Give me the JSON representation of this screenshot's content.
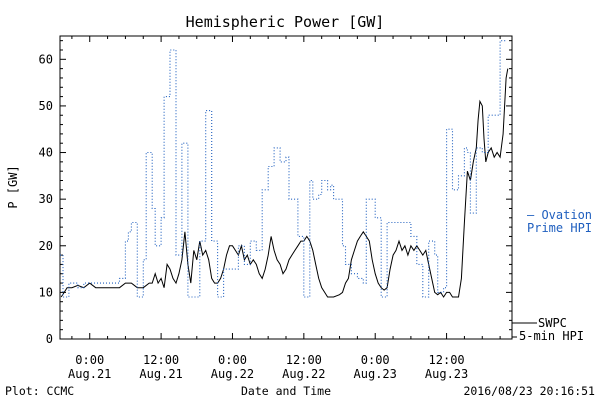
{
  "chart_data": {
    "type": "line",
    "title": "Hemispheric Power [GW]",
    "ylabel": "P [GW]",
    "xlabel": "Date and Time",
    "ylim": [
      0,
      65
    ],
    "yticks": [
      0,
      10,
      20,
      30,
      40,
      50,
      60
    ],
    "xlim": [
      -5,
      71
    ],
    "xticks": [
      {
        "x": 0,
        "time": "0:00",
        "date": "Aug.21"
      },
      {
        "x": 12,
        "time": "12:00",
        "date": "Aug.21"
      },
      {
        "x": 24,
        "time": "0:00",
        "date": "Aug.22"
      },
      {
        "x": 36,
        "time": "12:00",
        "date": "Aug.22"
      },
      {
        "x": 48,
        "time": "0:00",
        "date": "Aug.23"
      },
      {
        "x": 60,
        "time": "12:00",
        "date": "Aug.23"
      }
    ],
    "grid": false,
    "series": [
      {
        "name": "SWPC 5-min HPI",
        "color": "#000000",
        "style": "solid",
        "points": [
          [
            -4.8,
            9
          ],
          [
            -4.3,
            10
          ],
          [
            -3.8,
            11
          ],
          [
            -3,
            11
          ],
          [
            -2,
            11.5
          ],
          [
            -1,
            11
          ],
          [
            0,
            12
          ],
          [
            1,
            11
          ],
          [
            2,
            11
          ],
          [
            3,
            11
          ],
          [
            4,
            11
          ],
          [
            5,
            11
          ],
          [
            6,
            12
          ],
          [
            7,
            12
          ],
          [
            8,
            11
          ],
          [
            9,
            11
          ],
          [
            10,
            12
          ],
          [
            10.5,
            12
          ],
          [
            11,
            14
          ],
          [
            11.5,
            12
          ],
          [
            12,
            13
          ],
          [
            12.5,
            11
          ],
          [
            13,
            16
          ],
          [
            13.5,
            15
          ],
          [
            14,
            13
          ],
          [
            14.5,
            12
          ],
          [
            15,
            14
          ],
          [
            15.5,
            17
          ],
          [
            16,
            23
          ],
          [
            16.5,
            16
          ],
          [
            17,
            12
          ],
          [
            17.5,
            19
          ],
          [
            18,
            17
          ],
          [
            18.5,
            21
          ],
          [
            19,
            18
          ],
          [
            19.5,
            19
          ],
          [
            20,
            17
          ],
          [
            20.5,
            13
          ],
          [
            21,
            12
          ],
          [
            21.5,
            12
          ],
          [
            22,
            13
          ],
          [
            22.5,
            15
          ],
          [
            23,
            18
          ],
          [
            23.5,
            20
          ],
          [
            24,
            20
          ],
          [
            24.5,
            19
          ],
          [
            25,
            18
          ],
          [
            25.5,
            20
          ],
          [
            26,
            17
          ],
          [
            26.5,
            18
          ],
          [
            27,
            16
          ],
          [
            27.5,
            17
          ],
          [
            28,
            16
          ],
          [
            28.5,
            14
          ],
          [
            29,
            13
          ],
          [
            29.5,
            15
          ],
          [
            30,
            18
          ],
          [
            30.5,
            22
          ],
          [
            31,
            19
          ],
          [
            31.5,
            17
          ],
          [
            32,
            16
          ],
          [
            32.5,
            14
          ],
          [
            33,
            15
          ],
          [
            33.5,
            17
          ],
          [
            34,
            18
          ],
          [
            34.5,
            19
          ],
          [
            35,
            20
          ],
          [
            35.5,
            21
          ],
          [
            36,
            21
          ],
          [
            36.5,
            22
          ],
          [
            37,
            21
          ],
          [
            37.5,
            19
          ],
          [
            38,
            16
          ],
          [
            38.5,
            13
          ],
          [
            39,
            11
          ],
          [
            39.5,
            10
          ],
          [
            40,
            9
          ],
          [
            41,
            9
          ],
          [
            42,
            9.5
          ],
          [
            42.5,
            10
          ],
          [
            43,
            12
          ],
          [
            43.5,
            13
          ],
          [
            44,
            17
          ],
          [
            44.5,
            19
          ],
          [
            45,
            21
          ],
          [
            45.5,
            22
          ],
          [
            46,
            23
          ],
          [
            46.5,
            22
          ],
          [
            47,
            21
          ],
          [
            47.5,
            17
          ],
          [
            48,
            14
          ],
          [
            48.5,
            12
          ],
          [
            49,
            11
          ],
          [
            49.5,
            10.5
          ],
          [
            50,
            11
          ],
          [
            50.5,
            15
          ],
          [
            51,
            18
          ],
          [
            51.5,
            19
          ],
          [
            52,
            21
          ],
          [
            52.5,
            19
          ],
          [
            53,
            20
          ],
          [
            53.5,
            18
          ],
          [
            54,
            20
          ],
          [
            54.5,
            19
          ],
          [
            55,
            20
          ],
          [
            55.5,
            19
          ],
          [
            56,
            18
          ],
          [
            56.5,
            19
          ],
          [
            57,
            16
          ],
          [
            57.5,
            13
          ],
          [
            58,
            10
          ],
          [
            58.5,
            9.5
          ],
          [
            59,
            10
          ],
          [
            59.5,
            9
          ],
          [
            60,
            10
          ],
          [
            60.5,
            10
          ],
          [
            61,
            9
          ],
          [
            61.5,
            9
          ],
          [
            62,
            9
          ],
          [
            62.5,
            13
          ],
          [
            63,
            25
          ],
          [
            63.5,
            36
          ],
          [
            64,
            34
          ],
          [
            64.5,
            38
          ],
          [
            65,
            41
          ],
          [
            65.3,
            47
          ],
          [
            65.6,
            51
          ],
          [
            66,
            50
          ],
          [
            66.3,
            43
          ],
          [
            66.6,
            38
          ],
          [
            67,
            40
          ],
          [
            67.5,
            41
          ],
          [
            68,
            39
          ],
          [
            68.5,
            40
          ],
          [
            69,
            39
          ],
          [
            69.5,
            44
          ],
          [
            70,
            56
          ],
          [
            70.3,
            58
          ]
        ]
      },
      {
        "name": "Ovation Prime HPI",
        "color": "#1f5fbf",
        "style": "dotted",
        "points": [
          [
            -5,
            18
          ],
          [
            -4.5,
            18
          ],
          [
            -4.5,
            9
          ],
          [
            -3.5,
            9
          ],
          [
            -3.5,
            12
          ],
          [
            -2,
            12
          ],
          [
            -2,
            11
          ],
          [
            -1,
            11
          ],
          [
            -1,
            12
          ],
          [
            5,
            12
          ],
          [
            5,
            13
          ],
          [
            6,
            13
          ],
          [
            6,
            21
          ],
          [
            6.5,
            21
          ],
          [
            6.5,
            23
          ],
          [
            7,
            23
          ],
          [
            7,
            25
          ],
          [
            8,
            25
          ],
          [
            8,
            9
          ],
          [
            9,
            9
          ],
          [
            9,
            17
          ],
          [
            9.5,
            17
          ],
          [
            9.5,
            40
          ],
          [
            10.5,
            40
          ],
          [
            10.5,
            28
          ],
          [
            11,
            28
          ],
          [
            11,
            20
          ],
          [
            12,
            20
          ],
          [
            12,
            26
          ],
          [
            12.5,
            26
          ],
          [
            12.5,
            52
          ],
          [
            13.5,
            52
          ],
          [
            13.5,
            62
          ],
          [
            14.5,
            62
          ],
          [
            14.5,
            18
          ],
          [
            15.5,
            18
          ],
          [
            15.5,
            42
          ],
          [
            16.5,
            42
          ],
          [
            16.5,
            9
          ],
          [
            18.5,
            9
          ],
          [
            18.5,
            21
          ],
          [
            19.5,
            21
          ],
          [
            19.5,
            49
          ],
          [
            20.5,
            49
          ],
          [
            20.5,
            21
          ],
          [
            21.5,
            21
          ],
          [
            21.5,
            9
          ],
          [
            22.5,
            9
          ],
          [
            22.5,
            15
          ],
          [
            25,
            15
          ],
          [
            25,
            20
          ],
          [
            26,
            20
          ],
          [
            26,
            16
          ],
          [
            27,
            16
          ],
          [
            27,
            21
          ],
          [
            28,
            21
          ],
          [
            28,
            19
          ],
          [
            29,
            19
          ],
          [
            29,
            32
          ],
          [
            30,
            32
          ],
          [
            30,
            37
          ],
          [
            31,
            37
          ],
          [
            31,
            41
          ],
          [
            32,
            41
          ],
          [
            32,
            38
          ],
          [
            33,
            38
          ],
          [
            33,
            39
          ],
          [
            33.5,
            39
          ],
          [
            33.5,
            30
          ],
          [
            35,
            30
          ],
          [
            35,
            22
          ],
          [
            36,
            22
          ],
          [
            36,
            9
          ],
          [
            37,
            9
          ],
          [
            37,
            34
          ],
          [
            37.5,
            34
          ],
          [
            37.5,
            30
          ],
          [
            38.5,
            30
          ],
          [
            38.5,
            31
          ],
          [
            39,
            31
          ],
          [
            39,
            34
          ],
          [
            40,
            34
          ],
          [
            40,
            32
          ],
          [
            40.5,
            32
          ],
          [
            40.5,
            33
          ],
          [
            41,
            33
          ],
          [
            41,
            30
          ],
          [
            42.5,
            30
          ],
          [
            42.5,
            20
          ],
          [
            43,
            20
          ],
          [
            43,
            16
          ],
          [
            44,
            16
          ],
          [
            44,
            14
          ],
          [
            45,
            14
          ],
          [
            45,
            13
          ],
          [
            46,
            13
          ],
          [
            46,
            12
          ],
          [
            46.5,
            12
          ],
          [
            46.5,
            30
          ],
          [
            48,
            30
          ],
          [
            48,
            26
          ],
          [
            49,
            26
          ],
          [
            49,
            9
          ],
          [
            50,
            9
          ],
          [
            50,
            25
          ],
          [
            54,
            25
          ],
          [
            54,
            22
          ],
          [
            55,
            22
          ],
          [
            55,
            16
          ],
          [
            56,
            16
          ],
          [
            56,
            9
          ],
          [
            57,
            9
          ],
          [
            57,
            21
          ],
          [
            58,
            21
          ],
          [
            58,
            18
          ],
          [
            58.5,
            18
          ],
          [
            58.5,
            10
          ],
          [
            59.5,
            10
          ],
          [
            59.5,
            11
          ],
          [
            60,
            11
          ],
          [
            60,
            45
          ],
          [
            61,
            45
          ],
          [
            61,
            32
          ],
          [
            62,
            32
          ],
          [
            62,
            35
          ],
          [
            63,
            35
          ],
          [
            63,
            41
          ],
          [
            63.5,
            41
          ],
          [
            63.5,
            40
          ],
          [
            64,
            40
          ],
          [
            64,
            27
          ],
          [
            65,
            27
          ],
          [
            65,
            41
          ],
          [
            66,
            41
          ],
          [
            66,
            40
          ],
          [
            67,
            40
          ],
          [
            67,
            48
          ],
          [
            68,
            48
          ],
          [
            68,
            48
          ],
          [
            69,
            48
          ],
          [
            69,
            64
          ],
          [
            70,
            64
          ]
        ]
      }
    ]
  },
  "legend": {
    "ovation": {
      "label_line1": "— Ovation",
      "label_line2": "Prime HPI"
    },
    "swpc": {
      "label_line1": "SWPC",
      "label_line2": "5-min HPI"
    }
  },
  "footer": {
    "plot_credit": "Plot: CCMC",
    "timestamp": "2016/08/23 20:16:51"
  }
}
